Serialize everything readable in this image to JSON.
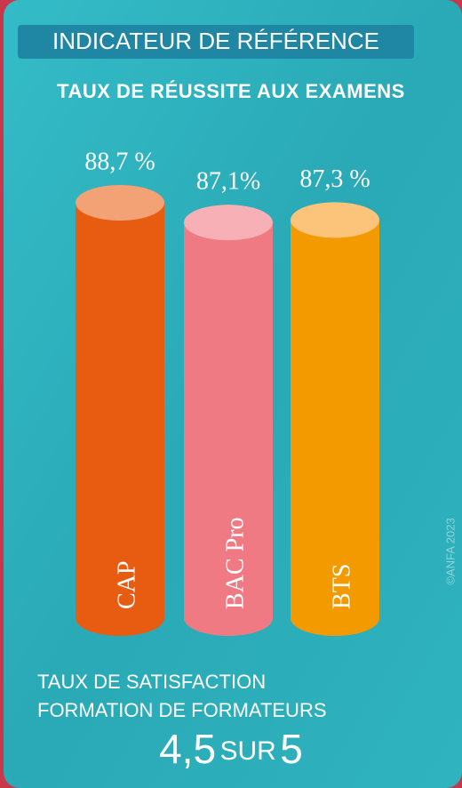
{
  "header": {
    "badge": "INDICATEUR DE RÉFÉRENCE",
    "copyright": "©ANFA 2023"
  },
  "chart_data": {
    "type": "cylinder",
    "title": "TAUX DE RÉUSSITE AUX EXAMENS",
    "categories": [
      "CAP",
      "BAC Pro",
      "BTS"
    ],
    "values": [
      88.7,
      87.1,
      87.3
    ],
    "value_labels": [
      "88,7 %",
      "87,1%",
      "87,3 %"
    ],
    "colors": [
      "#e85c12",
      "#f07a83",
      "#f39a00"
    ],
    "top_colors": [
      "#f3a276",
      "#f6b0b6",
      "#fcc47a"
    ],
    "ylim": [
      55,
      90
    ]
  },
  "footer": {
    "line1": "TAUX DE SATISFACTION",
    "line2": "FORMATION DE FORMATEURS",
    "score": "4,5",
    "word": "SUR",
    "max": "5"
  }
}
